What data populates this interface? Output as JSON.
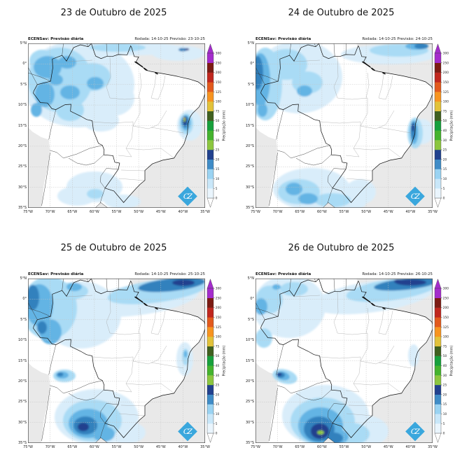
{
  "map": {
    "x_ticks": [
      "75°W",
      "70°W",
      "65°W",
      "60°W",
      "55°W",
      "50°W",
      "45°W",
      "40°W",
      "35°W"
    ],
    "y_ticks": [
      "5°N",
      "0°",
      "5°S",
      "10°S",
      "15°S",
      "20°S",
      "25°S",
      "30°S",
      "35°S"
    ],
    "logo_text": "CZ",
    "logo_color": "#3aa7dd",
    "ocean_color": "#e9e9e9",
    "land_color": "#ffffff"
  },
  "colorbar": {
    "label": "Precipitação (mm)",
    "levels": [
      "0",
      "5",
      "10",
      "15",
      "20",
      "25",
      "30",
      "40",
      "50",
      "75",
      "100",
      "125",
      "150",
      "200",
      "250",
      "300"
    ],
    "colors": [
      "#eaf5fd",
      "#c9e7f9",
      "#9ad3f2",
      "#3f8cc7",
      "#21418e",
      "#8cc63f",
      "#45b32e",
      "#17a03c",
      "#40601f",
      "#e2c23a",
      "#f79420",
      "#e25a1d",
      "#c0271e",
      "#7c1b13",
      "#a42ccc"
    ],
    "arrow_top_color": "#a42ccc",
    "arrow_bottom_color": "#ffffff"
  },
  "palette": {
    "p": "#d9edfa",
    "l": "#a9dbf5",
    "m": "#63b4e4",
    "s": "#3181bd",
    "n": "#21418e",
    "g": "#8cc63f",
    "y": "#e2c23a"
  },
  "panels": [
    {
      "title": "23 de Outubro de 2025",
      "header_left": "ECENSav: Previsão diária",
      "header_right": "Rodada: 14-10-25 Previsão: 23-10-25",
      "features": [
        [
          "p",
          72,
          58,
          80,
          62
        ],
        [
          "p",
          120,
          78,
          32,
          26
        ],
        [
          "p",
          104,
          110,
          26,
          16
        ],
        [
          "p",
          150,
          8,
          75,
          9
        ],
        [
          "p",
          215,
          14,
          38,
          11
        ],
        [
          "p",
          95,
          205,
          40,
          22
        ],
        [
          "p",
          70,
          218,
          28,
          14
        ],
        [
          "p",
          135,
          226,
          26,
          10
        ],
        [
          "p",
          231,
          117,
          18,
          22
        ],
        [
          "l",
          46,
          52,
          46,
          46
        ],
        [
          "l",
          92,
          48,
          26,
          20
        ],
        [
          "l",
          20,
          25,
          18,
          16
        ],
        [
          "l",
          60,
          95,
          20,
          16
        ],
        [
          "l",
          128,
          6,
          40,
          6
        ],
        [
          "l",
          96,
          215,
          12,
          7
        ],
        [
          "l",
          226,
          115,
          10,
          15
        ],
        [
          "m",
          28,
          34,
          20,
          16
        ],
        [
          "m",
          56,
          27,
          13,
          9
        ],
        [
          "m",
          24,
          73,
          14,
          18
        ],
        [
          "m",
          60,
          70,
          14,
          10
        ],
        [
          "m",
          96,
          57,
          12,
          9
        ],
        [
          "m",
          40,
          52,
          10,
          8
        ],
        [
          "m",
          12,
          95,
          8,
          10
        ],
        [
          "m",
          225.5,
          113.5,
          7,
          11
        ],
        [
          "s",
          224.8,
          112,
          4.8,
          8.5
        ],
        [
          "s",
          221,
          9,
          6,
          2.5
        ],
        [
          "n",
          224.2,
          111,
          3,
          6
        ],
        [
          "n",
          227,
          8.5,
          3.2,
          1.6
        ],
        [
          "g",
          223.6,
          109,
          1.4,
          3.6
        ],
        [
          "y",
          223.4,
          107.5,
          0.9,
          1.6
        ]
      ]
    },
    {
      "title": "24 de Outubro de 2025",
      "header_left": "ECENSav: Previsão diária",
      "header_right": "Rodada: 14-10-25 Previsão: 24-10-25",
      "features": [
        [
          "p",
          62,
          48,
          62,
          52
        ],
        [
          "p",
          190,
          16,
          68,
          14
        ],
        [
          "p",
          238,
          126,
          16,
          18
        ],
        [
          "p",
          80,
          208,
          55,
          30
        ],
        [
          "p",
          150,
          212,
          22,
          18
        ],
        [
          "p",
          130,
          228,
          28,
          11
        ],
        [
          "l",
          14,
          58,
          24,
          52
        ],
        [
          "l",
          44,
          30,
          30,
          22
        ],
        [
          "l",
          74,
          56,
          22,
          16
        ],
        [
          "l",
          205,
          10,
          42,
          9
        ],
        [
          "l",
          62,
          212,
          30,
          18
        ],
        [
          "l",
          110,
          224,
          26,
          10
        ],
        [
          "l",
          228,
          128,
          11,
          22
        ],
        [
          "m",
          7,
          52,
          14,
          38
        ],
        [
          "m",
          10,
          95,
          7,
          10
        ],
        [
          "m",
          70,
          68,
          11,
          8
        ],
        [
          "m",
          55,
          208,
          12,
          9
        ],
        [
          "m",
          75,
          222,
          14,
          8
        ],
        [
          "m",
          226.5,
          127,
          6,
          17
        ],
        [
          "m",
          230,
          4,
          16,
          5
        ],
        [
          "s",
          3,
          42,
          8,
          24
        ],
        [
          "s",
          225.5,
          125,
          3.5,
          13
        ],
        [
          "s",
          237,
          4,
          10,
          4
        ],
        [
          "n",
          225,
          120,
          2,
          6
        ]
      ]
    },
    {
      "title": "25 de Outubro de 2025",
      "header_left": "ECENSav: Previsão diária",
      "header_right": "Rodada: 14-10-25 Previsão: 25-10-25",
      "features": [
        [
          "p",
          75,
          52,
          58,
          48
        ],
        [
          "p",
          160,
          30,
          85,
          22,
          -8
        ],
        [
          "p",
          224,
          115,
          12,
          24
        ],
        [
          "p",
          98,
          198,
          60,
          40
        ],
        [
          "p",
          140,
          220,
          28,
          16
        ],
        [
          "l",
          30,
          42,
          40,
          45
        ],
        [
          "l",
          60,
          18,
          26,
          12
        ],
        [
          "l",
          185,
          18,
          72,
          16,
          -8
        ],
        [
          "l",
          92,
          203,
          42,
          30
        ],
        [
          "l",
          225,
          112,
          5,
          12
        ],
        [
          "l",
          52,
          139,
          16,
          9
        ],
        [
          "m",
          16,
          38,
          20,
          30
        ],
        [
          "m",
          32,
          76,
          16,
          18
        ],
        [
          "m",
          66,
          12,
          11,
          6
        ],
        [
          "m",
          86,
          207,
          28,
          21
        ],
        [
          "m",
          49,
          138,
          9,
          5
        ],
        [
          "m",
          108,
          222,
          16,
          11
        ],
        [
          "m",
          225,
          108,
          2.5,
          5
        ],
        [
          "s",
          7,
          27,
          9,
          18
        ],
        [
          "s",
          20,
          70,
          7,
          9
        ],
        [
          "s",
          205,
          9,
          48,
          9,
          -6
        ],
        [
          "s",
          82,
          210,
          17,
          13
        ],
        [
          "s",
          46,
          137,
          4.5,
          3
        ],
        [
          "n",
          222,
          6,
          16,
          4.5
        ],
        [
          "n",
          79,
          212,
          8,
          6
        ]
      ]
    },
    {
      "title": "26 de Outubro de 2025",
      "header_left": "ECENSav: Previsão diária",
      "header_right": "Rodada: 14-10-25 Previsão: 26-10-25",
      "features": [
        [
          "p",
          48,
          40,
          52,
          45
        ],
        [
          "p",
          168,
          26,
          88,
          22,
          -8
        ],
        [
          "p",
          100,
          196,
          62,
          44
        ],
        [
          "p",
          158,
          218,
          32,
          22
        ],
        [
          "p",
          226,
          110,
          8,
          16
        ],
        [
          "p",
          55,
          180,
          12,
          7
        ],
        [
          "l",
          20,
          30,
          19,
          20
        ],
        [
          "l",
          55,
          15,
          20,
          10
        ],
        [
          "l",
          12,
          85,
          12,
          14
        ],
        [
          "l",
          195,
          16,
          66,
          15,
          -8
        ],
        [
          "l",
          96,
          204,
          46,
          34
        ],
        [
          "l",
          135,
          222,
          28,
          16
        ],
        [
          "l",
          42,
          140,
          18,
          10,
          15
        ],
        [
          "m",
          8,
          40,
          9,
          12
        ],
        [
          "m",
          30,
          12,
          6,
          4
        ],
        [
          "m",
          93,
          210,
          32,
          26
        ],
        [
          "m",
          39,
          139,
          10,
          6,
          15
        ],
        [
          "m",
          115,
          226,
          18,
          11
        ],
        [
          "s",
          215,
          8,
          46,
          8,
          -6
        ],
        [
          "s",
          91,
          215,
          22,
          18
        ],
        [
          "s",
          36,
          138,
          6,
          4
        ],
        [
          "s",
          112,
          228,
          13,
          8
        ],
        [
          "n",
          222,
          5.5,
          22,
          4.5
        ],
        [
          "n",
          204,
          4,
          6,
          3
        ],
        [
          "n",
          92,
          218,
          13,
          11
        ],
        [
          "n",
          34,
          137,
          3.5,
          2.5
        ],
        [
          "g",
          93,
          220,
          5,
          3
        ]
      ]
    }
  ]
}
